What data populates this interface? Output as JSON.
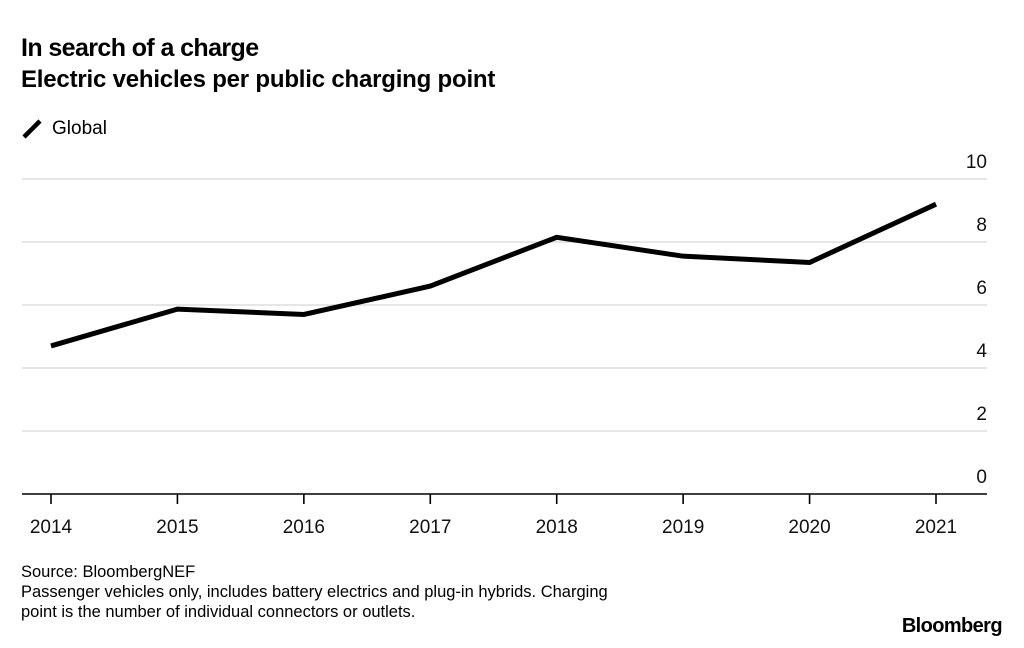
{
  "chart_data": {
    "type": "line",
    "title": "In search of a charge",
    "subtitle": "Electric vehicles per public charging point",
    "xlabel": "",
    "ylabel": "",
    "x": [
      "2014",
      "2015",
      "2016",
      "2017",
      "2018",
      "2019",
      "2020",
      "2021"
    ],
    "series": [
      {
        "name": "Global",
        "color": "#000000",
        "values": [
          4.7,
          5.87,
          5.7,
          6.6,
          8.15,
          7.55,
          7.35,
          9.2
        ]
      }
    ],
    "ylim": [
      0,
      10
    ],
    "yticks": [
      0,
      2,
      4,
      6,
      8,
      10
    ],
    "ytick_labels": [
      "0",
      "2",
      "4",
      "6",
      "8",
      "10"
    ],
    "y_axis_side": "right",
    "grid": true,
    "legend_position": "top-left",
    "colors": {
      "line": "#000000",
      "grid": "#dddddd",
      "axis": "#000000"
    }
  },
  "header": {
    "title": "In search of a charge",
    "subtitle": "Electric vehicles per public charging point"
  },
  "legend": {
    "items": [
      {
        "label": "Global",
        "icon": "line-swatch-icon"
      }
    ]
  },
  "footer": {
    "source": "Source: BloombergNEF",
    "note_line1": "Passenger vehicles only, includes battery electrics and plug-in hybrids. Charging",
    "note_line2": "point is the number of individual connectors or outlets.",
    "brand": "Bloomberg"
  }
}
